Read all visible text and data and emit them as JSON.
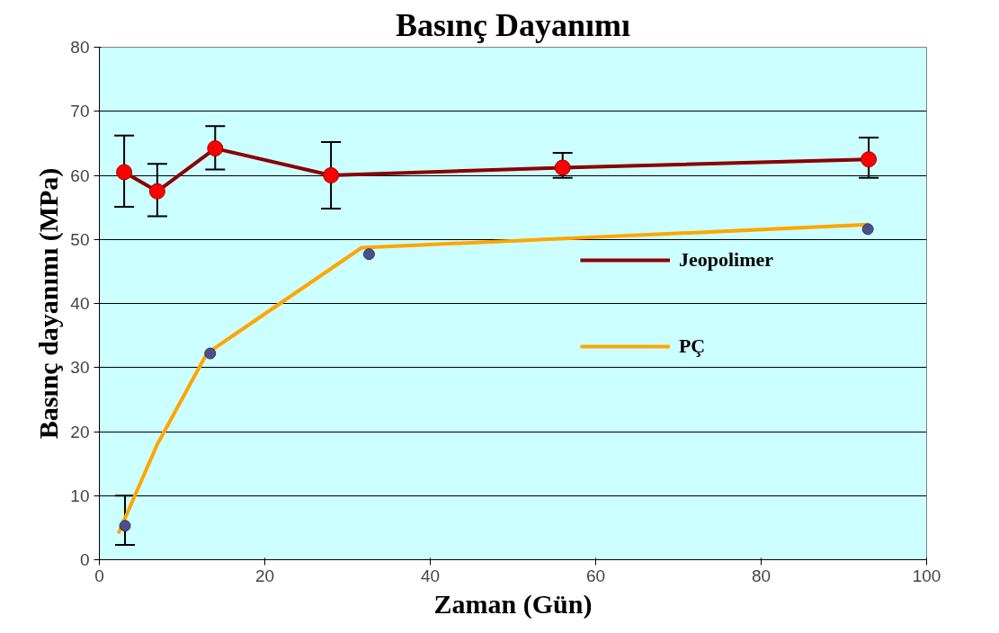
{
  "chart_data": {
    "type": "line",
    "title": "Basınç Dayanımı",
    "xlabel": "Zaman (Gün)",
    "ylabel": "Basınç dayanımı (MPa)",
    "xlim": [
      0,
      100
    ],
    "xticks": [
      0,
      20,
      40,
      60,
      80,
      100
    ],
    "ylim": [
      0,
      80
    ],
    "yticks": [
      0,
      10,
      20,
      30,
      40,
      50,
      60,
      70,
      80
    ],
    "grid": "y",
    "legend": "right",
    "series": [
      {
        "name": "Jeopolimer",
        "color": "#8b0000",
        "marker": "circle",
        "x": [
          3,
          7,
          14,
          28,
          56,
          93
        ],
        "values": [
          60.5,
          57.5,
          64.2,
          60,
          61.2,
          62.5
        ],
        "errors": [
          [
            55.1,
            66.2
          ],
          [
            53.6,
            61.8
          ],
          [
            60.9,
            67.7
          ],
          [
            54.8,
            65.2
          ],
          [
            59.6,
            63.5
          ],
          [
            59.6,
            65.9
          ]
        ]
      },
      {
        "name": "PÇ",
        "color": "#ffa500",
        "marker": "none",
        "x": [
          2.3,
          7,
          13,
          31.7,
          93
        ],
        "values": [
          4.1,
          18,
          32.2,
          48.7,
          52.3
        ]
      },
      {
        "type": "scatter",
        "color": "#4b4f8a",
        "marker": "circle",
        "x": [
          3.1,
          13.4,
          32.6,
          92.9
        ],
        "values": [
          5.3,
          32.2,
          47.7,
          51.6
        ],
        "errors": [
          [
            2.3,
            10
          ],
          null,
          null,
          null
        ]
      }
    ]
  }
}
